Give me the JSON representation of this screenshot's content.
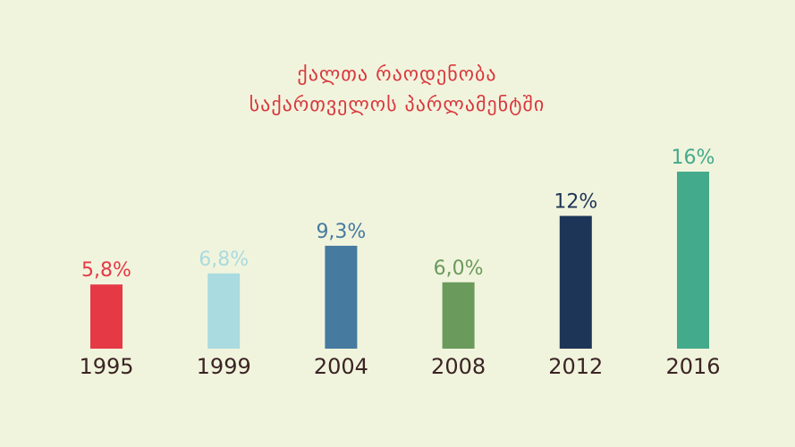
{
  "chart_data": {
    "type": "bar",
    "title": "ქალთა რაოდენობა",
    "subtitle": "საქართველოს პარლამენტში",
    "categories": [
      "1995",
      "1999",
      "2004",
      "2008",
      "2012",
      "2016"
    ],
    "values": [
      5.8,
      6.8,
      9.3,
      6.0,
      12,
      16
    ],
    "value_labels": [
      "5,8%",
      "6,8%",
      "9,3%",
      "6,0%",
      "12%",
      "16%"
    ],
    "colors": [
      "#e63946",
      "#a9dbe0",
      "#467a9f",
      "#6a9a5c",
      "#1d3557",
      "#43aa8b"
    ]
  }
}
